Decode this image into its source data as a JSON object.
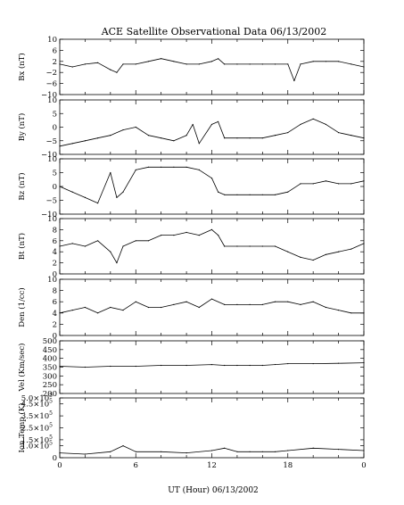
{
  "chart_data": {
    "type": "line",
    "title": "ACE Satellite Observational Data   06/13/2002",
    "xlabel": "UT (Hour)   06/13/2002",
    "x_ticks": [
      "0",
      "6",
      "12",
      "18",
      "0"
    ],
    "xlim": [
      0,
      24
    ],
    "panels": [
      {
        "ylabel": "Bx (nT)",
        "ylim": [
          -10,
          10
        ],
        "y_ticks": [
          "10",
          "6",
          "2",
          "−2",
          "−6",
          "−10"
        ],
        "y_tick_values": [
          10,
          6,
          2,
          -2,
          -6,
          -10
        ],
        "x": [
          0,
          1,
          2,
          3,
          4,
          4.5,
          5,
          6,
          7,
          8,
          9,
          10,
          11,
          12,
          12.5,
          13,
          14,
          15,
          16,
          17,
          18,
          18.5,
          19,
          20,
          21,
          22,
          23,
          24
        ],
        "values": [
          1,
          0,
          1,
          1.5,
          -1,
          -2,
          1,
          1,
          2,
          3,
          2,
          1,
          1,
          2,
          3,
          1,
          1,
          1,
          1,
          1,
          1,
          -5,
          1,
          2,
          2,
          2,
          1,
          0
        ]
      },
      {
        "ylabel": "By (nT)",
        "ylim": [
          -10,
          10
        ],
        "y_ticks": [
          "10",
          "5",
          "0",
          "−5",
          "−10"
        ],
        "y_tick_values": [
          10,
          5,
          0,
          -5,
          -10
        ],
        "x": [
          0,
          1,
          2,
          3,
          4,
          5,
          6,
          7,
          8,
          9,
          10,
          10.5,
          11,
          12,
          12.5,
          13,
          14,
          15,
          16,
          17,
          18,
          19,
          20,
          21,
          22,
          23,
          24
        ],
        "values": [
          -7,
          -6,
          -5,
          -4,
          -3,
          -1,
          0,
          -3,
          -4,
          -5,
          -3,
          1,
          -6,
          1,
          2,
          -4,
          -4,
          -4,
          -4,
          -3,
          -2,
          1,
          3,
          1,
          -2,
          -3,
          -4
        ]
      },
      {
        "ylabel": "Bz (nT)",
        "ylim": [
          -10,
          10
        ],
        "y_ticks": [
          "10",
          "5",
          "0",
          "−5",
          "−10"
        ],
        "y_tick_values": [
          10,
          5,
          0,
          -5,
          -10
        ],
        "x": [
          0,
          1,
          2,
          3,
          4,
          4.5,
          5,
          6,
          7,
          8,
          9,
          10,
          11,
          12,
          12.5,
          13,
          14,
          15,
          16,
          17,
          18,
          19,
          20,
          21,
          22,
          23,
          24
        ],
        "values": [
          0,
          -2,
          -4,
          -6,
          5,
          -4,
          -2,
          6,
          7,
          7,
          7,
          7,
          6,
          3,
          -2,
          -3,
          -3,
          -3,
          -3,
          -3,
          -2,
          1,
          1,
          2,
          1,
          1,
          2
        ]
      },
      {
        "ylabel": "Bt (nT)",
        "ylim": [
          0,
          10
        ],
        "y_ticks": [
          "10",
          "8",
          "6",
          "4",
          "2",
          "0"
        ],
        "y_tick_values": [
          10,
          8,
          6,
          4,
          2,
          0
        ],
        "x": [
          0,
          1,
          2,
          3,
          4,
          4.5,
          5,
          6,
          7,
          8,
          9,
          10,
          11,
          12,
          12.5,
          13,
          14,
          15,
          16,
          17,
          18,
          19,
          20,
          21,
          22,
          23,
          24
        ],
        "values": [
          5,
          5.5,
          5,
          6,
          4,
          2,
          5,
          6,
          6,
          7,
          7,
          7.5,
          7,
          8,
          7,
          5,
          5,
          5,
          5,
          5,
          4,
          3,
          2.5,
          3.5,
          4,
          4.5,
          5.5
        ]
      },
      {
        "ylabel": "Den (1/cc)",
        "ylim": [
          0,
          10
        ],
        "y_ticks": [
          "10",
          "8",
          "6",
          "4",
          "2",
          "0"
        ],
        "y_tick_values": [
          10,
          8,
          6,
          4,
          2,
          0
        ],
        "x": [
          0,
          1,
          2,
          3,
          4,
          5,
          6,
          7,
          8,
          9,
          10,
          11,
          12,
          13,
          14,
          15,
          16,
          17,
          18,
          19,
          20,
          21,
          22,
          23,
          24
        ],
        "values": [
          4,
          4.5,
          5,
          4,
          5,
          4.5,
          6,
          5,
          5,
          5.5,
          6,
          5,
          6.5,
          5.5,
          5.5,
          5.5,
          5.5,
          6,
          6,
          5.5,
          6,
          5,
          4.5,
          4,
          4
        ]
      },
      {
        "ylabel": "Vel (Km/sec)",
        "ylim": [
          200,
          500
        ],
        "y_ticks": [
          "500",
          "450",
          "400",
          "350",
          "300",
          "250",
          "200"
        ],
        "y_tick_values": [
          500,
          450,
          400,
          350,
          300,
          250,
          200
        ],
        "x": [
          0,
          2,
          4,
          6,
          8,
          10,
          12,
          13,
          14,
          15,
          16,
          17,
          18,
          20,
          22,
          24
        ],
        "values": [
          355,
          350,
          355,
          355,
          360,
          360,
          365,
          360,
          360,
          360,
          360,
          365,
          370,
          370,
          372,
          375
        ]
      },
      {
        "ylabel": "Ion Temp (K)",
        "ylim": [
          0,
          500000
        ],
        "y_ticks": [
          "5.0×10",
          "4.5×10",
          "3.5×10",
          "2.5×10",
          "1.5×10",
          "1.0×10",
          "0"
        ],
        "y_tick_exponent": "5",
        "y_tick_values": [
          500000,
          450000,
          350000,
          250000,
          150000,
          100000,
          0
        ],
        "x": [
          0,
          2,
          4,
          5,
          6,
          8,
          10,
          12,
          13,
          14,
          15,
          16,
          17,
          18,
          20,
          22,
          24
        ],
        "values": [
          40000,
          30000,
          50000,
          100000,
          50000,
          50000,
          40000,
          60000,
          80000,
          50000,
          50000,
          50000,
          50000,
          60000,
          80000,
          70000,
          60000
        ]
      }
    ]
  }
}
